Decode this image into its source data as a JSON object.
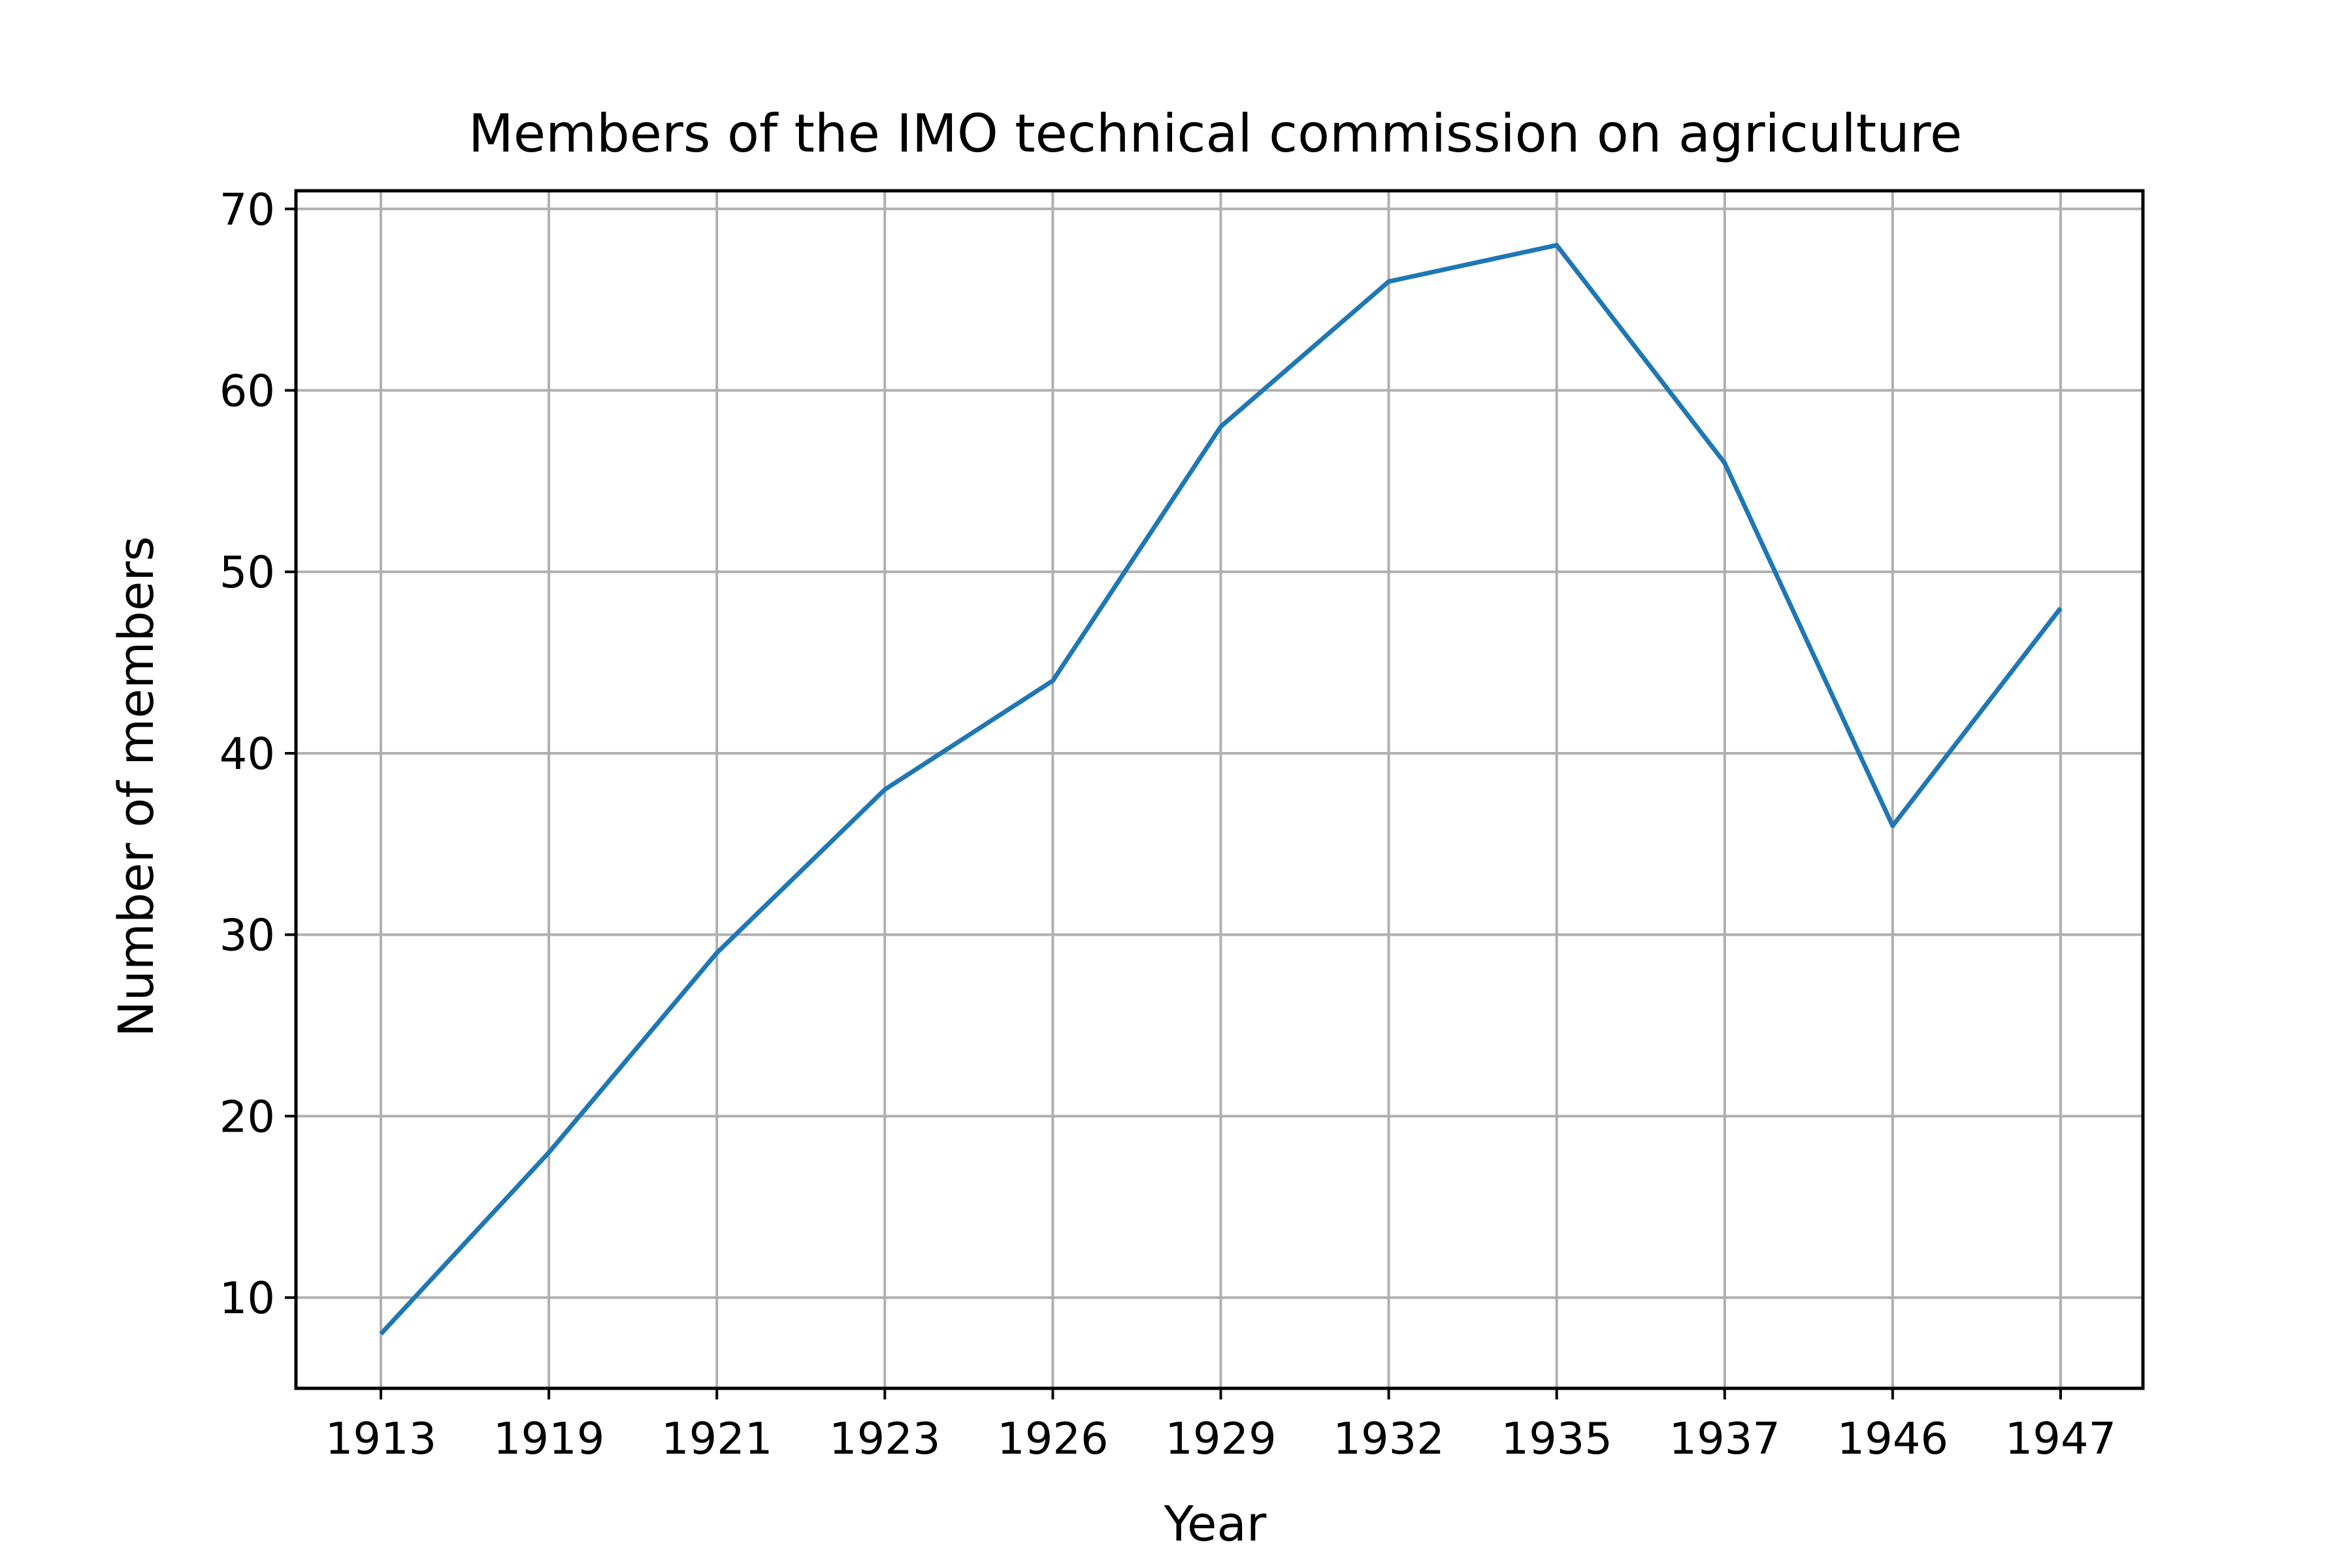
{
  "chart_data": {
    "type": "line",
    "title": "Members of the IMO technical commission on agriculture",
    "xlabel": "Year",
    "ylabel": "Number of members",
    "categories": [
      "1913",
      "1919",
      "1921",
      "1923",
      "1926",
      "1929",
      "1932",
      "1935",
      "1937",
      "1946",
      "1947"
    ],
    "series": [
      {
        "values": [
          8,
          18,
          29,
          38,
          44,
          58,
          66,
          68,
          56,
          36,
          48
        ],
        "color": "#1f77b4"
      }
    ],
    "yticks": [
      10,
      20,
      30,
      40,
      50,
      60,
      70
    ],
    "ylim": [
      5,
      71
    ],
    "grid": true,
    "grid_color": "#b0b0b0",
    "axis_color": "#000000",
    "legend": "none"
  }
}
